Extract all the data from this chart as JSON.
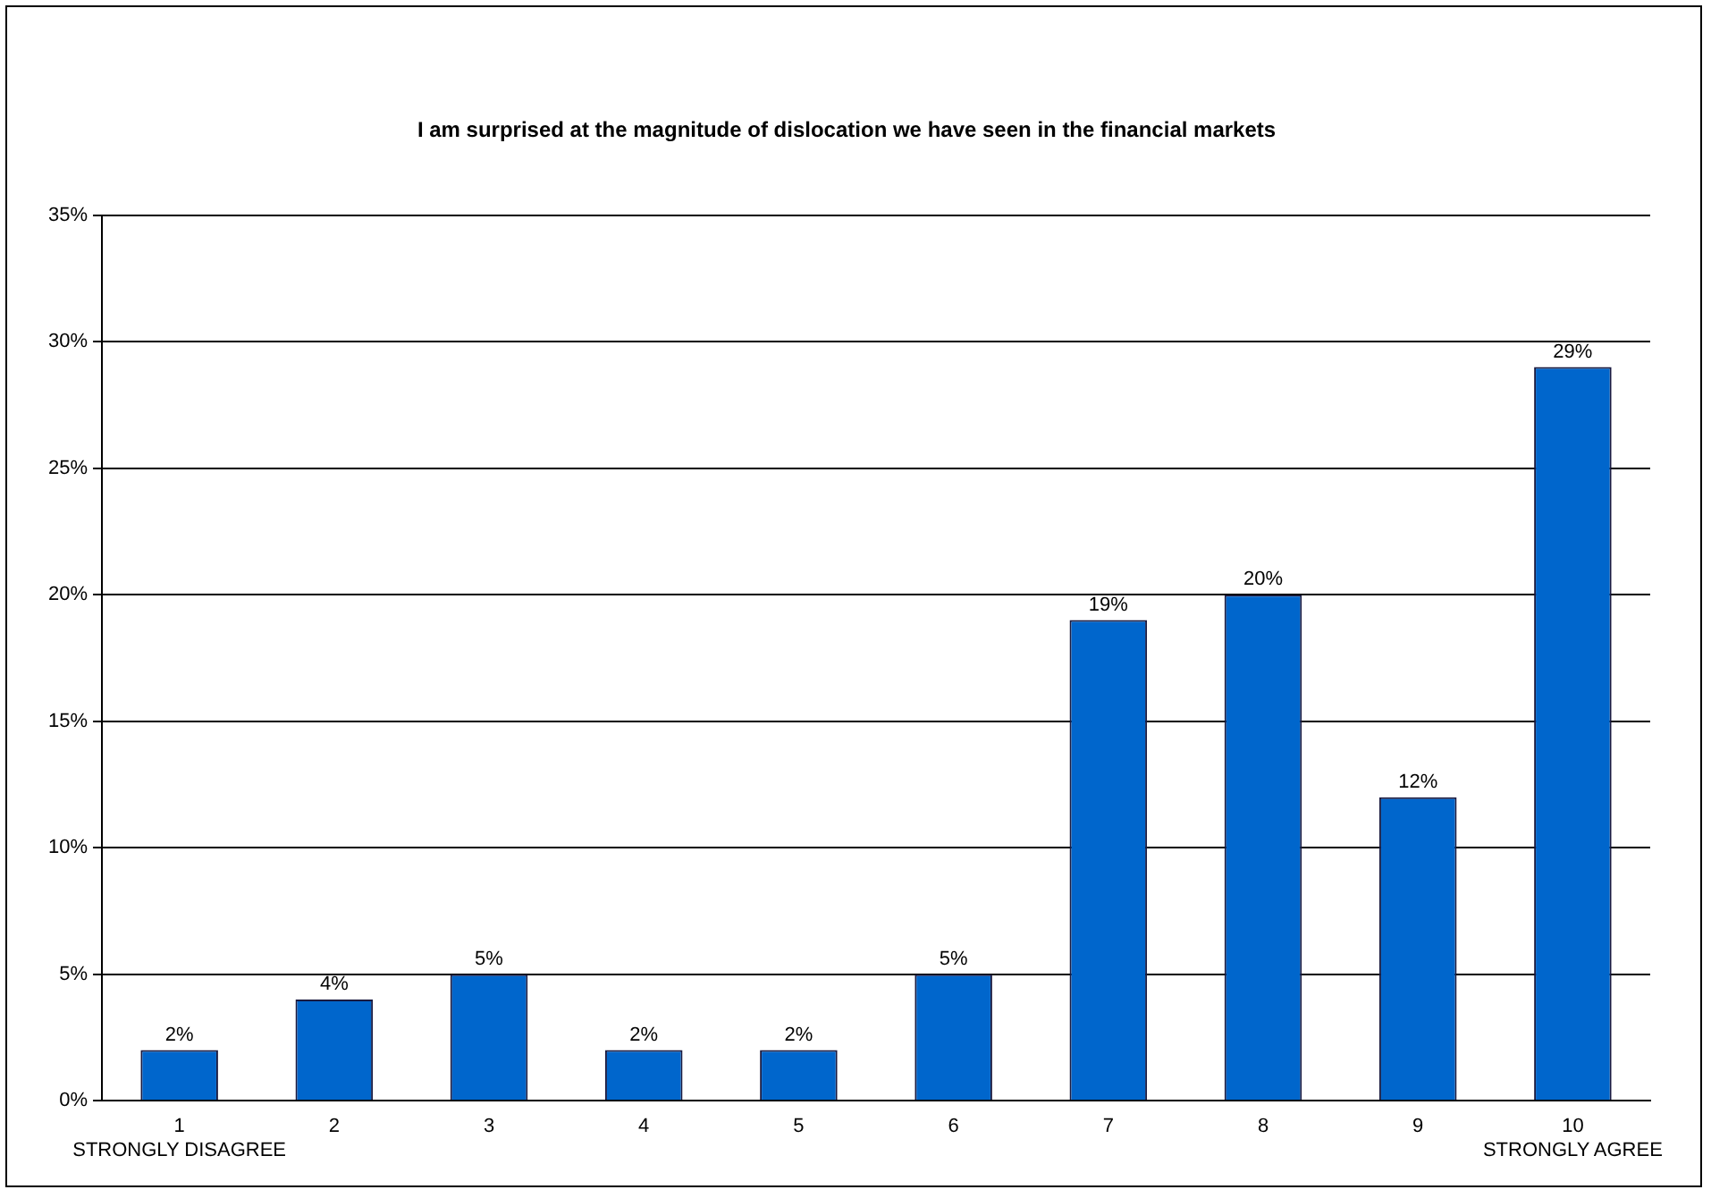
{
  "chart_data": {
    "type": "bar",
    "title": "I am surprised at the magnitude of dislocation we have seen in the financial markets",
    "categories": [
      "1\nSTRONGLY DISAGREE",
      "2",
      "3",
      "4",
      "5",
      "6",
      "7",
      "8",
      "9",
      "10\nSTRONGLY AGREE"
    ],
    "values": [
      2,
      4,
      5,
      2,
      2,
      5,
      19,
      20,
      12,
      29
    ],
    "value_labels": [
      "2%",
      "4%",
      "5%",
      "2%",
      "2%",
      "5%",
      "19%",
      "20%",
      "12%",
      "29%"
    ],
    "color": "#0066cc",
    "ylim": [
      0,
      35
    ],
    "yticks": [
      {
        "value": 0,
        "label": "0%"
      },
      {
        "value": 5,
        "label": "5%"
      },
      {
        "value": 10,
        "label": "10%"
      },
      {
        "value": 15,
        "label": "15%"
      },
      {
        "value": 20,
        "label": "20%"
      },
      {
        "value": 25,
        "label": "25%"
      },
      {
        "value": 30,
        "label": "30%"
      },
      {
        "value": 35,
        "label": "35%"
      }
    ],
    "grid": "y"
  }
}
